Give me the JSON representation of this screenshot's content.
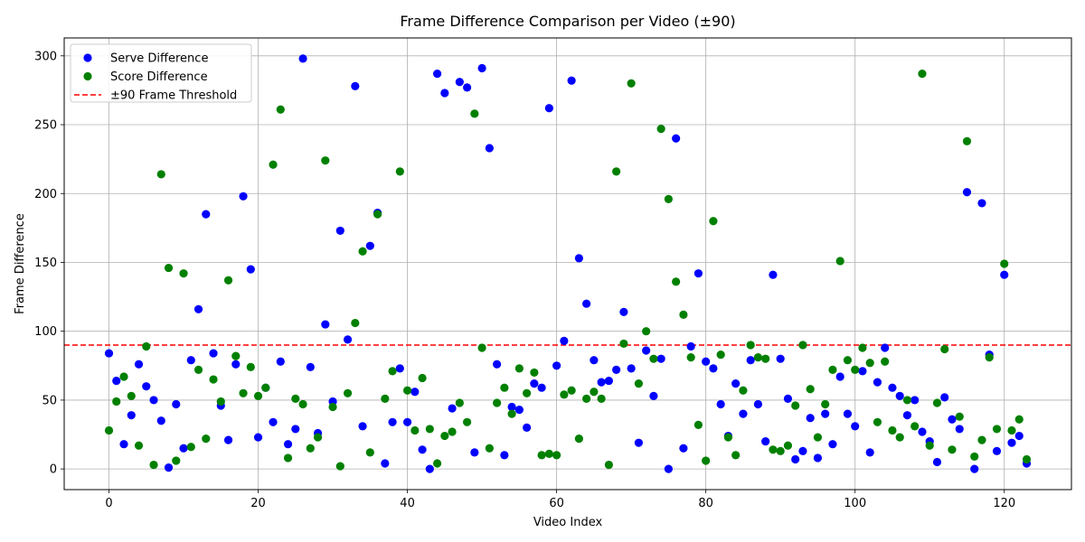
{
  "chart_data": {
    "type": "scatter",
    "title": "Frame Difference Comparison per Video (±90)",
    "xlabel": "Video Index",
    "ylabel": "Frame Difference",
    "xlim": [
      -6,
      129
    ],
    "ylim": [
      -15,
      313
    ],
    "xticks": [
      0,
      20,
      40,
      60,
      80,
      100,
      120
    ],
    "yticks": [
      0,
      50,
      100,
      150,
      200,
      250,
      300
    ],
    "grid": true,
    "legend_position": "top-left",
    "threshold": {
      "label": "±90 Frame Threshold",
      "value": 90,
      "color": "#ff0000"
    },
    "series": [
      {
        "name": "Serve Difference",
        "color": "#0000ff",
        "x": [
          0,
          1,
          2,
          3,
          4,
          5,
          6,
          7,
          8,
          9,
          10,
          11,
          12,
          13,
          14,
          15,
          16,
          17,
          18,
          19,
          20,
          21,
          22,
          23,
          24,
          25,
          26,
          27,
          28,
          29,
          30,
          31,
          32,
          33,
          34,
          35,
          36,
          37,
          38,
          39,
          40,
          41,
          42,
          43,
          44,
          45,
          46,
          47,
          48,
          49,
          50,
          51,
          52,
          53,
          54,
          55,
          56,
          57,
          58,
          59,
          60,
          61,
          62,
          63,
          64,
          65,
          66,
          67,
          68,
          69,
          70,
          71,
          72,
          73,
          74,
          75,
          76,
          77,
          78,
          79,
          80,
          81,
          82,
          83,
          84,
          85,
          86,
          87,
          88,
          89,
          90,
          91,
          92,
          93,
          94,
          95,
          96,
          97,
          98,
          99,
          100,
          101,
          102,
          103,
          104,
          105,
          106,
          107,
          108,
          109,
          110,
          111,
          112,
          113,
          114,
          115,
          116,
          117,
          118,
          119,
          120,
          121,
          122,
          123
        ],
        "y": [
          84,
          64,
          18,
          39,
          76,
          60,
          50,
          35,
          1,
          47,
          15,
          79,
          116,
          185,
          84,
          46,
          21,
          76,
          198,
          145,
          23,
          59,
          34,
          78,
          18,
          29,
          298,
          74,
          26,
          105,
          49,
          173,
          94,
          278,
          31,
          162,
          186,
          4,
          34,
          73,
          34,
          56,
          14,
          0,
          287,
          273,
          44,
          281,
          277,
          12,
          291,
          233,
          76,
          10,
          45,
          43,
          30,
          62,
          59,
          262,
          75,
          93,
          282,
          153,
          120,
          79,
          63,
          64,
          72,
          114,
          73,
          19,
          86,
          53,
          80,
          0,
          240,
          15,
          89,
          142,
          78,
          73,
          47,
          24,
          62,
          40,
          79,
          47,
          20,
          141,
          80,
          51,
          7,
          13,
          37,
          8,
          40,
          18,
          67,
          40,
          31,
          71,
          12,
          63,
          88,
          59,
          53,
          39,
          50,
          27,
          20,
          5,
          52,
          36,
          29,
          201,
          0,
          193,
          83,
          13,
          141,
          19,
          24,
          4
        ]
      },
      {
        "name": "Score Difference",
        "color": "#008000",
        "x": [
          0,
          1,
          2,
          3,
          4,
          5,
          6,
          7,
          8,
          9,
          10,
          11,
          12,
          13,
          14,
          15,
          16,
          17,
          18,
          19,
          20,
          21,
          22,
          23,
          24,
          25,
          26,
          27,
          28,
          29,
          30,
          31,
          32,
          33,
          34,
          35,
          36,
          37,
          38,
          39,
          40,
          41,
          42,
          43,
          44,
          45,
          46,
          47,
          48,
          49,
          50,
          51,
          52,
          53,
          54,
          55,
          56,
          57,
          58,
          59,
          60,
          61,
          62,
          63,
          64,
          65,
          66,
          67,
          68,
          69,
          70,
          71,
          72,
          73,
          74,
          75,
          76,
          77,
          78,
          79,
          80,
          81,
          82,
          83,
          84,
          85,
          86,
          87,
          88,
          89,
          90,
          91,
          92,
          93,
          94,
          95,
          96,
          97,
          98,
          99,
          100,
          101,
          102,
          103,
          104,
          105,
          106,
          107,
          108,
          109,
          110,
          111,
          112,
          113,
          114,
          115,
          116,
          117,
          118,
          119,
          120,
          121,
          122,
          123
        ],
        "y": [
          28,
          49,
          67,
          53,
          17,
          89,
          3,
          214,
          146,
          6,
          142,
          16,
          72,
          22,
          65,
          49,
          137,
          82,
          55,
          74,
          53,
          59,
          221,
          261,
          8,
          51,
          47,
          15,
          23,
          224,
          45,
          2,
          55,
          106,
          158,
          12,
          185,
          51,
          71,
          216,
          57,
          28,
          66,
          29,
          4,
          24,
          27,
          48,
          34,
          258,
          88,
          15,
          48,
          59,
          40,
          73,
          55,
          70,
          10,
          11,
          10,
          54,
          57,
          22,
          51,
          56,
          51,
          3,
          216,
          91,
          280,
          62,
          100,
          80,
          247,
          196,
          136,
          112,
          81,
          32,
          6,
          180,
          83,
          23,
          10,
          57,
          90,
          81,
          80,
          14,
          13,
          17,
          46,
          90,
          58,
          23,
          47,
          72,
          151,
          79,
          72,
          88,
          77,
          34,
          78,
          28,
          23,
          50,
          31,
          287,
          17,
          48,
          87,
          14,
          38,
          238,
          9,
          21,
          81,
          29,
          149,
          28,
          36,
          7
        ]
      }
    ]
  }
}
